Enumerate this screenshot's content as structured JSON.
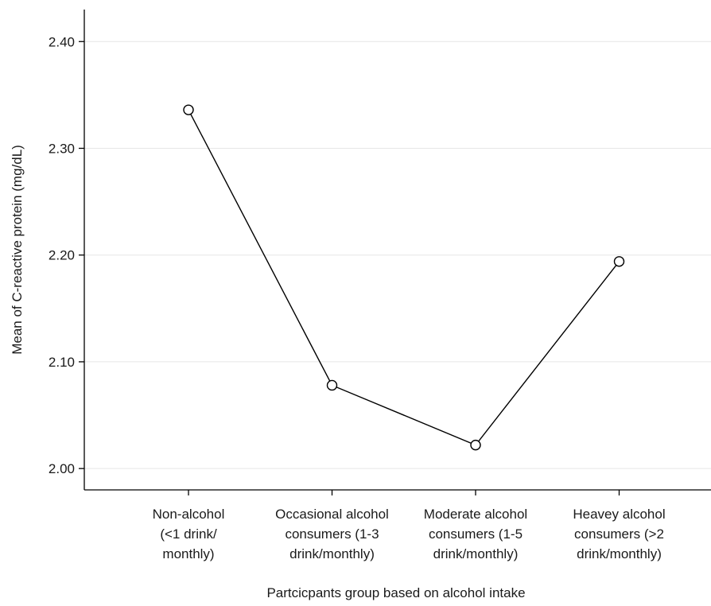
{
  "chart_data": {
    "type": "line",
    "title": "",
    "xlabel": "Partcicpants group based on alcohol intake",
    "ylabel": "Mean of C-reactive protein (mg/dL)",
    "categories": [
      [
        "Non-alcohol",
        "(<1 drink/",
        "monthly)"
      ],
      [
        "Occasional alcohol",
        "consumers (1-3",
        "drink/monthly)"
      ],
      [
        "Moderate alcohol",
        "consumers (1-5",
        "drink/monthly)"
      ],
      [
        "Heavey alcohol",
        "consumers (>2",
        "drink/monthly)"
      ]
    ],
    "series": [
      {
        "values": [
          2.336,
          2.078,
          2.022,
          2.194
        ]
      }
    ],
    "ylim": [
      1.98,
      2.43
    ],
    "yticks": [
      2.0,
      2.1,
      2.2,
      2.3,
      2.4
    ],
    "ytick_labels": [
      "2.00",
      "2.10",
      "2.20",
      "2.30",
      "2.40"
    ],
    "grid": "horizontal",
    "legend": "none",
    "colors": {
      "line": "#000000",
      "marker_fill": "#ffffff",
      "grid": "#e6e6e6"
    }
  }
}
